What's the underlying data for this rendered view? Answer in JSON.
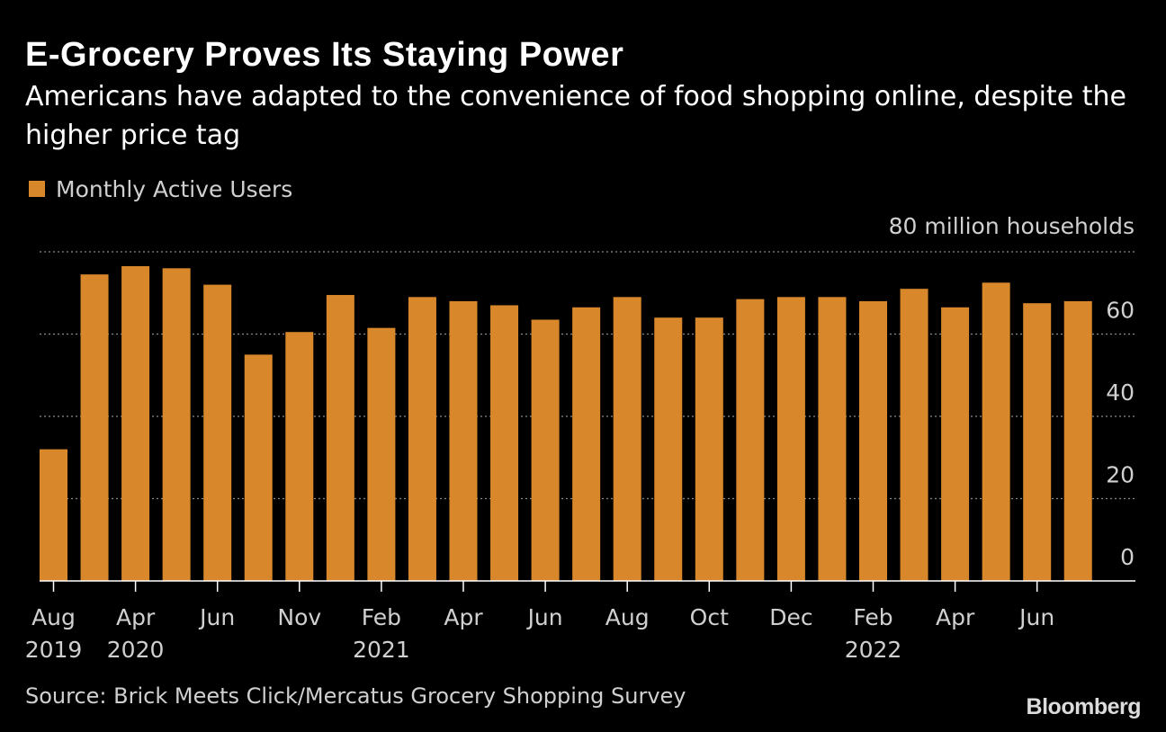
{
  "title": "E-Grocery Proves Its Staying Power",
  "subtitle": "Americans have adapted to the convenience of food shopping online, despite the higher price tag",
  "legend": {
    "label": "Monthly Active Users",
    "color": "#d8882b"
  },
  "source": "Source: Brick Meets Click/Mercatus Grocery Shopping Survey",
  "brand": "Bloomberg",
  "chart_data": {
    "type": "bar",
    "unit_label": "80 million households",
    "series": [
      {
        "name": "Monthly Active Users",
        "color": "#d8882b",
        "values": [
          32,
          74.5,
          76.5,
          76,
          72,
          55,
          60.5,
          69.5,
          61.5,
          69,
          68,
          67,
          63.5,
          66.5,
          69,
          64,
          64,
          68.5,
          69,
          69,
          68,
          71,
          66.5,
          72.5,
          67.5,
          68
        ]
      }
    ],
    "ylim": [
      0,
      80
    ],
    "yticks": [
      {
        "value": 0,
        "label": "0"
      },
      {
        "value": 20,
        "label": "20"
      },
      {
        "value": 40,
        "label": "40"
      },
      {
        "value": 60,
        "label": "60"
      },
      {
        "value": 80,
        "label": "80 million households"
      }
    ],
    "xtick_labels": [
      {
        "index": 0,
        "month": "Aug",
        "year": "2019"
      },
      {
        "index": 2,
        "month": "Apr",
        "year": "2020"
      },
      {
        "index": 4,
        "month": "Jun",
        "year": ""
      },
      {
        "index": 6,
        "month": "Nov",
        "year": ""
      },
      {
        "index": 8,
        "month": "Feb",
        "year": "2021"
      },
      {
        "index": 10,
        "month": "Apr",
        "year": ""
      },
      {
        "index": 12,
        "month": "Jun",
        "year": ""
      },
      {
        "index": 14,
        "month": "Aug",
        "year": ""
      },
      {
        "index": 16,
        "month": "Oct",
        "year": ""
      },
      {
        "index": 18,
        "month": "Dec",
        "year": ""
      },
      {
        "index": 20,
        "month": "Feb",
        "year": "2022"
      },
      {
        "index": 22,
        "month": "Apr",
        "year": ""
      },
      {
        "index": 24,
        "month": "Jun",
        "year": ""
      }
    ],
    "grid": true,
    "legend_position": "top-left"
  }
}
